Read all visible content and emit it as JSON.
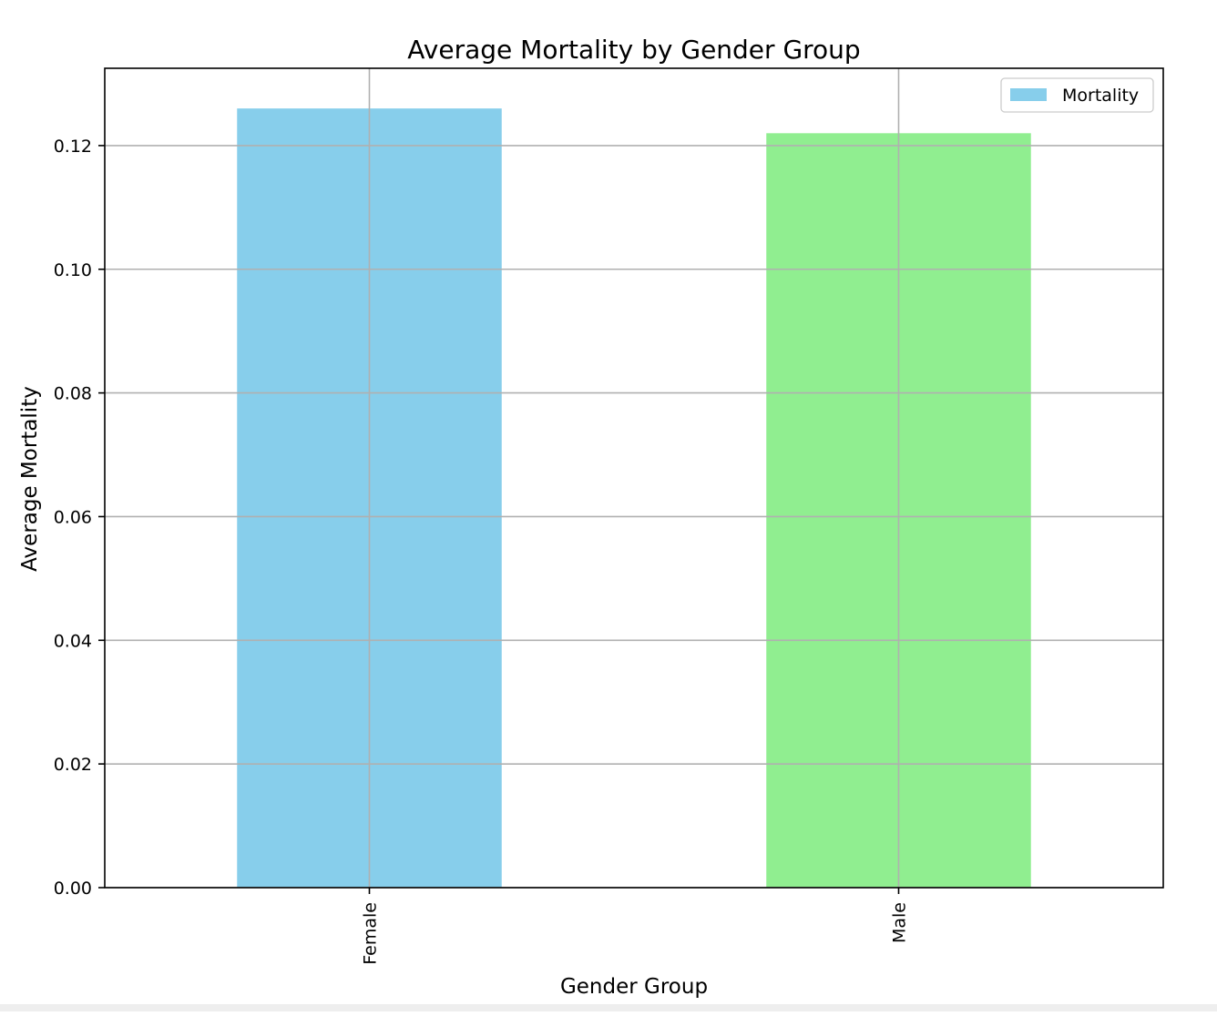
{
  "chart_data": {
    "type": "bar",
    "title": "Average Mortality by Gender Group",
    "xlabel": "Gender Group",
    "ylabel": "Average Mortality",
    "categories": [
      "Female",
      "Male"
    ],
    "series": [
      {
        "name": "Mortality",
        "values": [
          0.126,
          0.122
        ]
      }
    ],
    "bar_colors": [
      "#87CEEB",
      "#90EE90"
    ],
    "ylim": [
      0,
      0.1325
    ],
    "yticks": [
      0.0,
      0.02,
      0.04,
      0.06,
      0.08,
      0.1,
      0.12
    ],
    "ytick_labels": [
      "0.00",
      "0.02",
      "0.04",
      "0.06",
      "0.08",
      "0.10",
      "0.12"
    ],
    "grid": true,
    "legend_position": "top-right",
    "xtick_rotation": "vertical"
  }
}
